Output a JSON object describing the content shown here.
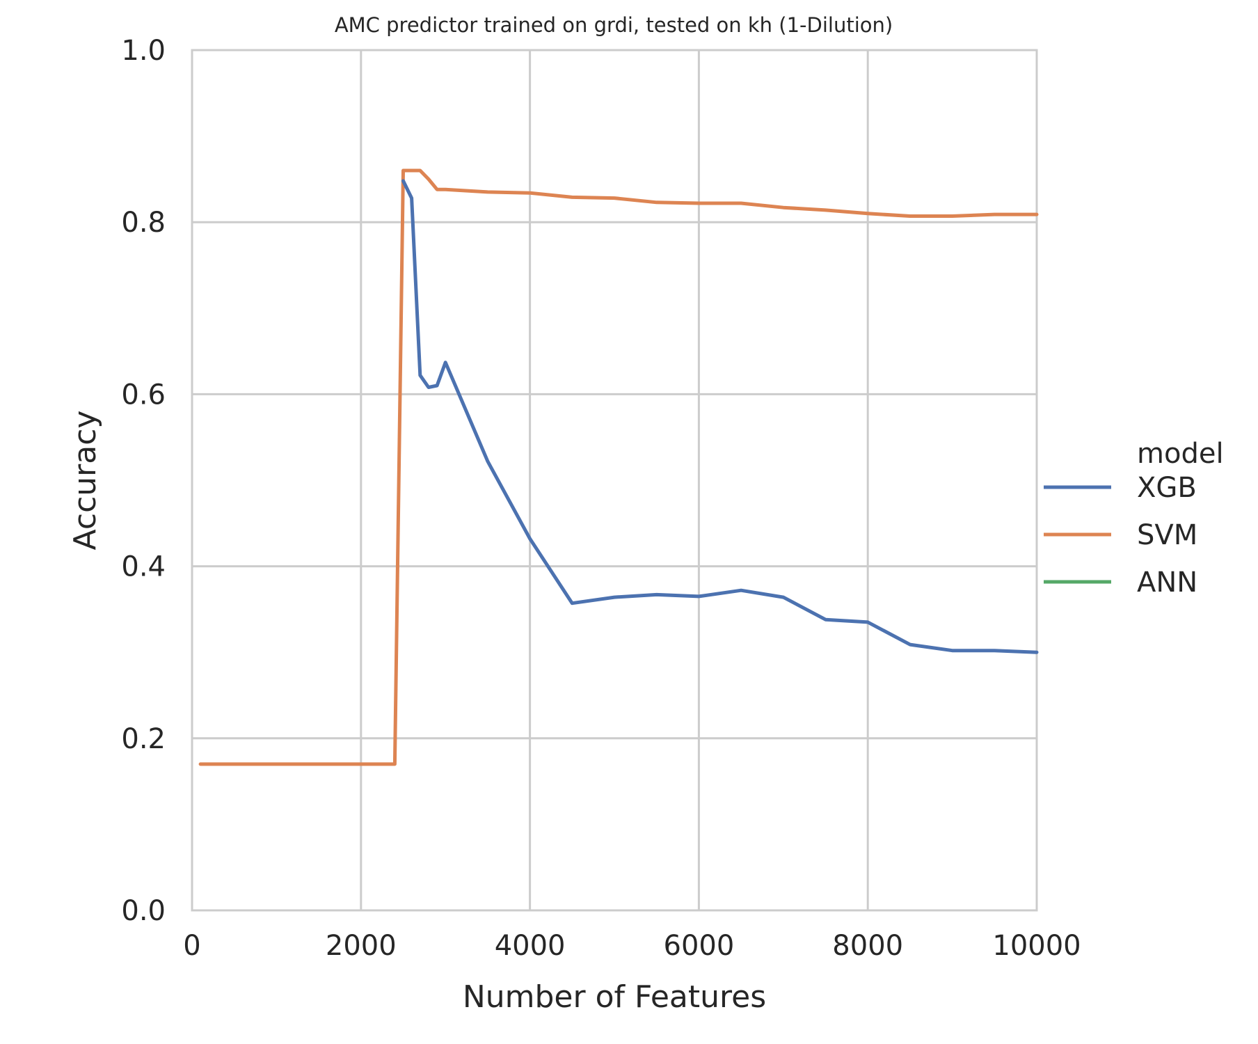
{
  "chart_data": {
    "type": "line",
    "title": "AMC predictor trained on grdi, tested on kh (1-Dilution)",
    "xlabel": "Number of Features",
    "ylabel": "Accuracy",
    "xlim": [
      0,
      10000
    ],
    "ylim": [
      0.0,
      1.0
    ],
    "xticks": [
      0,
      2000,
      4000,
      6000,
      8000,
      10000
    ],
    "xtick_labels": [
      "0",
      "2000",
      "4000",
      "6000",
      "8000",
      "10000"
    ],
    "yticks": [
      0.0,
      0.2,
      0.4,
      0.6,
      0.8,
      1.0
    ],
    "ytick_labels": [
      "0.0",
      "0.2",
      "0.4",
      "0.6",
      "0.8",
      "1.0"
    ],
    "grid": true,
    "legend": {
      "title": "model",
      "placement": "right"
    },
    "series": [
      {
        "name": "XGB",
        "color": "#4c72b0",
        "x": [
          2500,
          2600,
          2700,
          2800,
          2900,
          3000,
          3500,
          4000,
          4500,
          5000,
          5500,
          6000,
          6500,
          7000,
          7500,
          8000,
          8500,
          9000,
          9500,
          10000
        ],
        "y": [
          0.848,
          0.828,
          0.622,
          0.608,
          0.61,
          0.637,
          0.522,
          0.432,
          0.357,
          0.364,
          0.367,
          0.365,
          0.372,
          0.364,
          0.338,
          0.335,
          0.309,
          0.302,
          0.302,
          0.3
        ]
      },
      {
        "name": "SVM",
        "color": "#dd8452",
        "x": [
          100,
          2000,
          2400,
          2500,
          2600,
          2700,
          2800,
          2900,
          3000,
          3500,
          4000,
          4500,
          5000,
          5500,
          6000,
          6500,
          7000,
          7500,
          8000,
          8500,
          9000,
          9500,
          10000
        ],
        "y": [
          0.17,
          0.17,
          0.17,
          0.86,
          0.86,
          0.86,
          0.85,
          0.838,
          0.838,
          0.835,
          0.834,
          0.829,
          0.828,
          0.823,
          0.822,
          0.822,
          0.817,
          0.814,
          0.81,
          0.807,
          0.807,
          0.809,
          0.809
        ]
      },
      {
        "name": "ANN",
        "color": "#55a868",
        "x": [],
        "y": []
      }
    ]
  }
}
